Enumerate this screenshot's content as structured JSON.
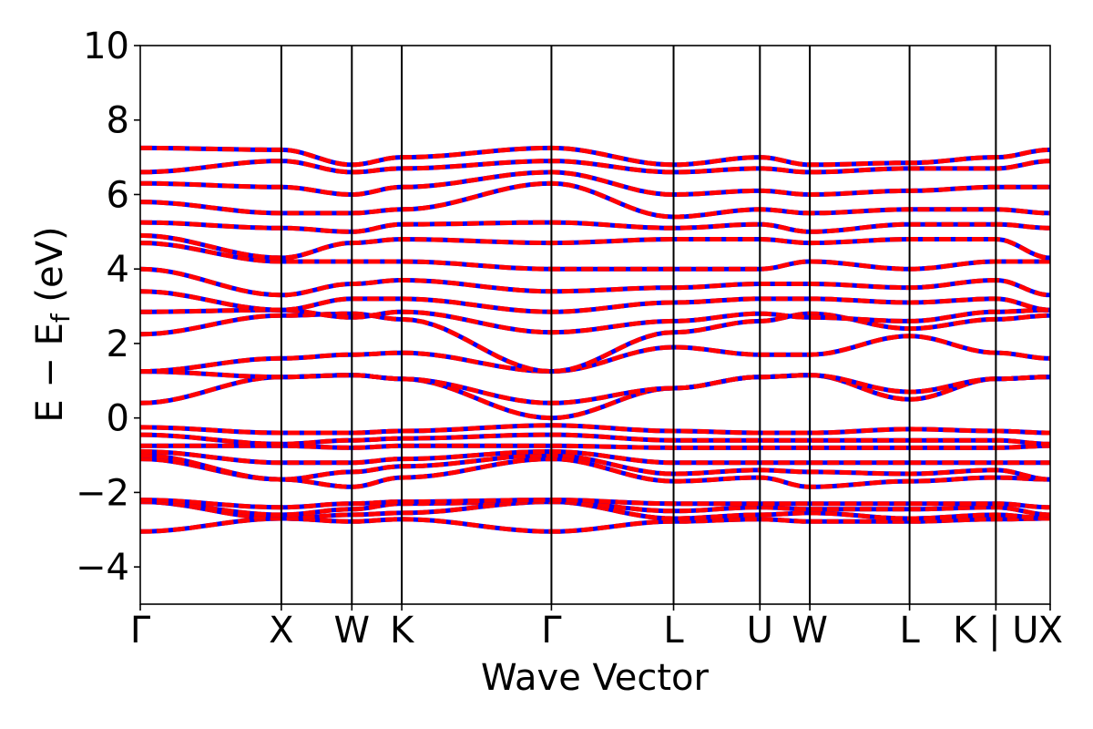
{
  "chart_data": {
    "type": "line",
    "title": "",
    "xlabel": "Wave Vector",
    "ylabel": {
      "main": "E − E",
      "subscript": "f",
      "unit": " (eV)"
    },
    "ylim": [
      -5,
      10
    ],
    "yticks": [
      -4,
      -2,
      0,
      2,
      4,
      6,
      8,
      10
    ],
    "ytick_labels": [
      "−4",
      "−2",
      "0",
      "2",
      "4",
      "6",
      "8",
      "10"
    ],
    "grid": false,
    "legend": "none",
    "xlim": [
      0,
      6.451
    ],
    "high_symmetry_points": [
      {
        "label": "Γ",
        "x": 0.0
      },
      {
        "label": "X",
        "x": 1.0
      },
      {
        "label": "W",
        "x": 1.5
      },
      {
        "label": "K",
        "x": 1.854
      },
      {
        "label": "Γ",
        "x": 2.915
      },
      {
        "label": "L",
        "x": 3.781
      },
      {
        "label": "U",
        "x": 4.393
      },
      {
        "label": "W",
        "x": 4.747
      },
      {
        "label": "L",
        "x": 5.454
      },
      {
        "label": "K | U",
        "x": 6.066
      },
      {
        "label": "X",
        "x": 6.451
      }
    ],
    "series_styles": [
      {
        "role": "spin-up",
        "color": "#0000ff",
        "style": "solid"
      },
      {
        "role": "spin-down",
        "color": "#ff0000",
        "style": "dashed"
      }
    ],
    "bands": [
      {
        "name": "b1",
        "values": [
          -3.05,
          -2.7,
          -2.78,
          -2.72,
          -3.05,
          -2.78,
          -2.72,
          -2.78,
          -2.78,
          -2.72,
          -2.7
        ]
      },
      {
        "name": "b2",
        "values": [
          -2.25,
          -2.7,
          -2.6,
          -2.55,
          -2.25,
          -2.7,
          -2.6,
          -2.55,
          -2.7,
          -2.6,
          -2.7
        ]
      },
      {
        "name": "b3",
        "values": [
          -2.25,
          -2.6,
          -2.45,
          -2.3,
          -2.25,
          -2.5,
          -2.4,
          -2.45,
          -2.45,
          -2.4,
          -2.6
        ]
      },
      {
        "name": "b4",
        "values": [
          -2.2,
          -2.4,
          -2.3,
          -2.25,
          -2.2,
          -2.3,
          -2.3,
          -2.3,
          -2.3,
          -2.3,
          -2.4
        ]
      },
      {
        "name": "b5",
        "values": [
          -1.1,
          -1.65,
          -1.85,
          -1.6,
          -1.1,
          -1.7,
          -1.6,
          -1.85,
          -1.7,
          -1.6,
          -1.65
        ]
      },
      {
        "name": "b6",
        "values": [
          -1.0,
          -1.65,
          -1.45,
          -1.3,
          -1.0,
          -1.5,
          -1.4,
          -1.45,
          -1.5,
          -1.4,
          -1.65
        ]
      },
      {
        "name": "b7",
        "values": [
          -0.9,
          -1.2,
          -1.2,
          -1.1,
          -0.9,
          -1.2,
          -1.2,
          -1.2,
          -1.2,
          -1.2,
          -1.2
        ]
      },
      {
        "name": "b8",
        "values": [
          -0.75,
          -0.75,
          -0.8,
          -0.75,
          -0.75,
          -0.8,
          -0.8,
          -0.8,
          -0.8,
          -0.8,
          -0.75
        ]
      },
      {
        "name": "b9",
        "values": [
          -0.45,
          -0.7,
          -0.6,
          -0.55,
          -0.45,
          -0.6,
          -0.6,
          -0.6,
          -0.6,
          -0.6,
          -0.7
        ]
      },
      {
        "name": "b10",
        "values": [
          -0.25,
          -0.4,
          -0.4,
          -0.35,
          -0.2,
          -0.35,
          -0.4,
          -0.4,
          -0.3,
          -0.35,
          -0.4
        ]
      },
      {
        "name": "b11",
        "values": [
          0.4,
          1.1,
          1.15,
          1.05,
          0.0,
          0.8,
          1.1,
          1.15,
          0.5,
          1.05,
          1.1
        ]
      },
      {
        "name": "b12",
        "values": [
          1.25,
          1.1,
          1.15,
          1.05,
          0.4,
          0.8,
          1.1,
          1.15,
          0.7,
          1.05,
          1.1
        ]
      },
      {
        "name": "b13",
        "values": [
          1.25,
          1.6,
          1.7,
          1.75,
          1.25,
          1.9,
          1.7,
          1.7,
          2.2,
          1.75,
          1.6
        ]
      },
      {
        "name": "b14",
        "values": [
          2.25,
          2.75,
          2.8,
          2.65,
          1.25,
          2.3,
          2.6,
          2.8,
          2.4,
          2.65,
          2.75
        ]
      },
      {
        "name": "b15",
        "values": [
          2.85,
          2.9,
          2.7,
          2.85,
          2.3,
          2.6,
          2.8,
          2.7,
          2.6,
          2.85,
          2.9
        ]
      },
      {
        "name": "b16",
        "values": [
          3.4,
          2.9,
          3.2,
          3.2,
          2.85,
          3.1,
          3.2,
          3.2,
          3.1,
          3.2,
          2.9
        ]
      },
      {
        "name": "b17",
        "values": [
          4.0,
          3.3,
          3.6,
          3.7,
          3.4,
          3.5,
          3.6,
          3.6,
          3.5,
          3.7,
          3.3
        ]
      },
      {
        "name": "b18",
        "values": [
          4.7,
          4.2,
          4.2,
          4.2,
          4.0,
          4.0,
          4.0,
          4.2,
          4.0,
          4.2,
          4.2
        ]
      },
      {
        "name": "b19",
        "values": [
          4.9,
          4.3,
          4.7,
          4.8,
          4.7,
          4.8,
          4.8,
          4.7,
          4.8,
          4.8,
          4.3
        ]
      },
      {
        "name": "b20",
        "values": [
          5.25,
          5.1,
          5.0,
          5.2,
          5.25,
          5.1,
          5.2,
          5.0,
          5.2,
          5.2,
          5.1
        ]
      },
      {
        "name": "b21",
        "values": [
          5.8,
          5.5,
          5.5,
          5.6,
          6.3,
          5.4,
          5.6,
          5.5,
          5.6,
          5.6,
          5.5
        ]
      },
      {
        "name": "b22",
        "values": [
          6.3,
          6.2,
          6.0,
          6.2,
          6.6,
          6.0,
          6.1,
          6.0,
          6.1,
          6.2,
          6.2
        ]
      },
      {
        "name": "b23",
        "values": [
          6.6,
          6.9,
          6.6,
          6.7,
          6.9,
          6.6,
          6.7,
          6.6,
          6.7,
          6.7,
          6.9
        ]
      },
      {
        "name": "b24",
        "values": [
          7.25,
          7.2,
          6.8,
          7.0,
          7.25,
          6.8,
          7.0,
          6.8,
          6.85,
          7.0,
          7.2
        ]
      }
    ]
  }
}
